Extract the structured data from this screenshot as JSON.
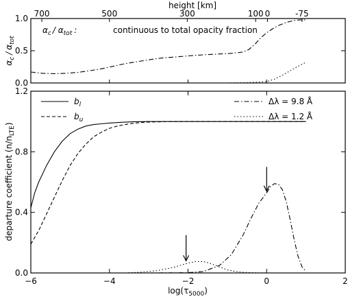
{
  "chart_data": [
    {
      "type": "line",
      "panel": "top",
      "title": "",
      "annotation": "continuous to total opacity fraction",
      "annotation_symbol": "α_c / α_tot :",
      "ylabel_main": "α",
      "ylabel_sub_c": "c",
      "ylabel_div": "/",
      "ylabel_sub_tot": "tot",
      "top_axis_label": "height [km]",
      "top_ticks": [
        {
          "label": "700",
          "x": -5.72
        },
        {
          "label": "500",
          "x": -4.0
        },
        {
          "label": "300",
          "x": -2.02
        },
        {
          "label": "100",
          "x": -0.28
        },
        {
          "label": "0",
          "x": 0.02
        },
        {
          "label": "-75",
          "x": 0.9
        }
      ],
      "xlim": [
        -6,
        2
      ],
      "ylim": [
        0,
        1
      ],
      "yticks": [
        {
          "v": 0.0,
          "label": "0.0"
        },
        {
          "v": 0.5,
          "label": "0.5"
        },
        {
          "v": 1.0,
          "label": "1.0"
        }
      ],
      "series": [
        {
          "style": "dashdot",
          "x": [
            -6.0,
            -5.7,
            -5.4,
            -5.1,
            -4.8,
            -4.5,
            -4.2,
            -3.9,
            -3.6,
            -3.3,
            -3.0,
            -2.7,
            -2.4,
            -2.1,
            -1.8,
            -1.5,
            -1.2,
            -0.9,
            -0.6,
            -0.45,
            -0.3,
            -0.15,
            0.0,
            0.15,
            0.3,
            0.5,
            0.7,
            0.85,
            1.0
          ],
          "y": [
            0.17,
            0.15,
            0.145,
            0.15,
            0.165,
            0.19,
            0.22,
            0.26,
            0.3,
            0.33,
            0.36,
            0.385,
            0.4,
            0.415,
            0.43,
            0.44,
            0.45,
            0.46,
            0.48,
            0.52,
            0.6,
            0.7,
            0.78,
            0.84,
            0.89,
            0.94,
            0.97,
            0.98,
            0.98
          ]
        },
        {
          "style": "dotted",
          "x": [
            -6.0,
            -3.0,
            -1.0,
            -0.5,
            0.0,
            0.2,
            0.4,
            0.6,
            0.8,
            1.0
          ],
          "y": [
            0.0,
            0.0,
            0.0,
            0.005,
            0.02,
            0.06,
            0.12,
            0.19,
            0.26,
            0.32
          ]
        }
      ]
    },
    {
      "type": "line",
      "panel": "bottom",
      "title": "",
      "xlabel": "log(τ",
      "xlabel_sub": "5000",
      "xlabel_close": ")",
      "ylabel": "departure coefficient (n/n",
      "ylabel_sub": "LTE",
      "ylabel_close": ")",
      "xlim": [
        -6,
        2
      ],
      "ylim": [
        0,
        1.2
      ],
      "xticks": [
        {
          "v": -6,
          "label": "−6"
        },
        {
          "v": -4,
          "label": "−4"
        },
        {
          "v": -2,
          "label": "−2"
        },
        {
          "v": 0,
          "label": "0"
        },
        {
          "v": 2,
          "label": "2"
        }
      ],
      "yticks": [
        {
          "v": 0.0,
          "label": "0.0"
        },
        {
          "v": 0.4,
          "label": "0.4"
        },
        {
          "v": 0.8,
          "label": "0.8"
        },
        {
          "v": 1.2,
          "label": "1.2"
        }
      ],
      "legend_left": [
        {
          "main": "b",
          "sub": "l",
          "style": "solid"
        },
        {
          "main": "b",
          "sub": "u",
          "style": "dashed"
        }
      ],
      "legend_right": [
        {
          "text": "Δλ = 9.8 Å",
          "style": "dashdot"
        },
        {
          "text": "Δλ = 1.2 Å",
          "style": "dotted"
        }
      ],
      "arrows": [
        {
          "x": -2.05,
          "y_top": 0.25,
          "y_tip": 0.08
        },
        {
          "x": 0.0,
          "y_top": 0.7,
          "y_tip": 0.54
        }
      ],
      "series": [
        {
          "name": "b_l",
          "style": "solid",
          "x": [
            -6.0,
            -5.9,
            -5.8,
            -5.6,
            -5.4,
            -5.2,
            -5.0,
            -4.8,
            -4.6,
            -4.4,
            -4.2,
            -4.0,
            -3.7,
            -3.4,
            -3.0,
            -2.5,
            -2.0,
            -1.0,
            0.0,
            1.0
          ],
          "y": [
            0.43,
            0.53,
            0.6,
            0.71,
            0.8,
            0.87,
            0.92,
            0.95,
            0.97,
            0.98,
            0.985,
            0.99,
            0.995,
            0.998,
            1.0,
            1.0,
            1.0,
            1.0,
            1.0,
            1.0
          ]
        },
        {
          "name": "b_u",
          "style": "dashed",
          "x": [
            -6.0,
            -5.8,
            -5.6,
            -5.4,
            -5.2,
            -5.0,
            -4.8,
            -4.6,
            -4.4,
            -4.2,
            -4.0,
            -3.8,
            -3.6,
            -3.4,
            -3.2,
            -3.0,
            -2.6,
            -2.0,
            -1.0,
            0.0,
            1.0
          ],
          "y": [
            0.19,
            0.28,
            0.39,
            0.5,
            0.61,
            0.71,
            0.79,
            0.85,
            0.9,
            0.93,
            0.955,
            0.97,
            0.98,
            0.988,
            0.993,
            0.996,
            0.999,
            1.0,
            1.0,
            1.0,
            1.0
          ]
        },
        {
          "name": "Δλ = 9.8 Å",
          "style": "dashdot",
          "x": [
            -3.0,
            -2.0,
            -1.6,
            -1.2,
            -0.9,
            -0.6,
            -0.4,
            -0.2,
            0.0,
            0.1,
            0.2,
            0.3,
            0.4,
            0.5,
            0.6,
            0.7,
            0.8,
            0.9,
            1.0
          ],
          "y": [
            0.0,
            0.002,
            0.01,
            0.05,
            0.12,
            0.25,
            0.36,
            0.46,
            0.53,
            0.57,
            0.59,
            0.585,
            0.55,
            0.47,
            0.35,
            0.22,
            0.11,
            0.04,
            0.01
          ]
        },
        {
          "name": "Δλ = 1.2 Å",
          "style": "dotted",
          "x": [
            -3.6,
            -3.2,
            -2.8,
            -2.4,
            -2.2,
            -2.0,
            -1.8,
            -1.6,
            -1.4,
            -1.2,
            -1.0,
            -0.8,
            -0.6,
            -0.3,
            0.0
          ],
          "y": [
            0.0,
            0.005,
            0.015,
            0.035,
            0.05,
            0.065,
            0.075,
            0.075,
            0.06,
            0.04,
            0.02,
            0.01,
            0.004,
            0.001,
            0.0
          ]
        }
      ]
    }
  ]
}
